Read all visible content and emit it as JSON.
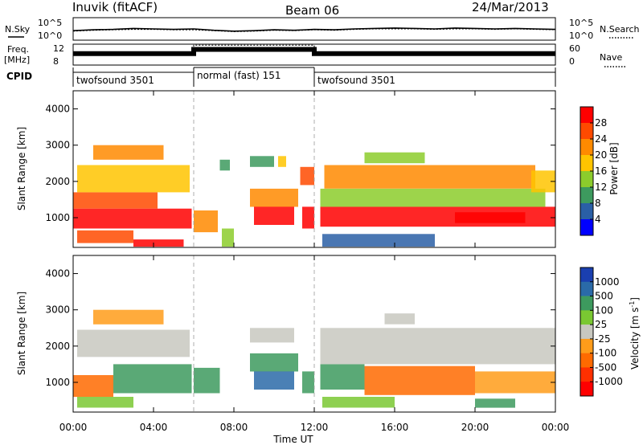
{
  "header": {
    "station": "Inuvik (fitACF)",
    "beam": "Beam 06",
    "date": "24/Mar/2013"
  },
  "chart_data": [
    {
      "type": "line",
      "id": "noise",
      "left_label": "N.Sky",
      "right_label": "N.Search",
      "yticks_left": [
        "10^5",
        "10^0"
      ],
      "yticks_right": [
        "10^5",
        "10^0"
      ],
      "x": [
        0,
        1,
        2,
        3,
        4,
        5,
        6,
        7,
        8,
        9,
        10,
        11,
        12,
        13,
        14,
        15,
        16,
        17,
        18,
        19,
        20,
        21,
        22,
        23,
        24
      ],
      "series": [
        {
          "name": "N.Sky",
          "values": [
            2.1,
            2.3,
            2.4,
            2.6,
            2.5,
            2.4,
            2.5,
            2.2,
            2.0,
            2.1,
            2.3,
            2.2,
            2.4,
            2.3,
            2.5,
            2.6,
            2.7,
            2.6,
            2.5,
            2.7,
            2.6,
            2.5,
            2.6,
            2.5,
            2.4
          ]
        },
        {
          "name": "N.Search",
          "values": [
            2.0,
            2.2,
            2.3,
            2.4,
            2.4,
            2.3,
            2.3,
            2.1,
            1.9,
            2.0,
            2.2,
            2.1,
            2.3,
            2.2,
            2.4,
            2.5,
            2.5,
            2.5,
            2.4,
            2.5,
            2.5,
            2.4,
            2.5,
            2.4,
            2.3
          ]
        }
      ]
    },
    {
      "type": "line",
      "id": "freq",
      "left_label_1": "Freq.",
      "left_label_2": "[MHz]",
      "right_label": "Nave",
      "yticks_left": [
        "12",
        "8"
      ],
      "yticks_right": [
        "60",
        "0"
      ],
      "x": [
        0,
        6,
        6,
        12,
        12,
        24
      ],
      "series": [
        {
          "name": "Freq.",
          "values": [
            10.2,
            10.2,
            11.0,
            11.0,
            10.2,
            10.2
          ]
        },
        {
          "name": "Nave",
          "values": [
            30,
            30,
            57,
            57,
            30,
            30
          ]
        }
      ]
    },
    {
      "type": "table",
      "id": "cpid",
      "label": "CPID",
      "segments": [
        {
          "start": 0,
          "end": 6,
          "text": "twofsound 3501"
        },
        {
          "start": 6,
          "end": 12,
          "text": "normal (fast) 151"
        },
        {
          "start": 12,
          "end": 24,
          "text": "twofsound 3501"
        }
      ]
    },
    {
      "type": "heatmap",
      "id": "power",
      "ylabel": "Slant Range [km]",
      "yticks": [
        1000,
        2000,
        3000,
        4000
      ],
      "ylim": [
        180,
        4500
      ],
      "xlim": [
        0,
        24
      ],
      "colorbar": {
        "label": "Power [dB]",
        "ticks": [
          "28",
          "24",
          "20",
          "16",
          "12",
          "8",
          "4"
        ],
        "colors": [
          "#ff0000",
          "#ff4a00",
          "#ff8a00",
          "#ffc400",
          "#8ccc2c",
          "#3d9a5e",
          "#2a5fa6",
          "#0000ff"
        ]
      },
      "regions": [
        {
          "x0": 0,
          "x1": 5.9,
          "y0": 700,
          "y1": 1250,
          "c": 0
        },
        {
          "x0": 0,
          "x1": 4.2,
          "y0": 1250,
          "y1": 1700,
          "c": 1
        },
        {
          "x0": 0.2,
          "x1": 5.8,
          "y0": 1700,
          "y1": 2450,
          "c": 3
        },
        {
          "x0": 1.0,
          "x1": 4.5,
          "y0": 2600,
          "y1": 3000,
          "c": 2
        },
        {
          "x0": 0.2,
          "x1": 3.0,
          "y0": 300,
          "y1": 650,
          "c": 1
        },
        {
          "x0": 3.0,
          "x1": 5.5,
          "y0": 200,
          "y1": 400,
          "c": 0
        },
        {
          "x0": 6.0,
          "x1": 7.2,
          "y0": 600,
          "y1": 1200,
          "c": 2
        },
        {
          "x0": 7.3,
          "x1": 7.8,
          "y0": 2300,
          "y1": 2600,
          "c": 5
        },
        {
          "x0": 7.4,
          "x1": 8.0,
          "y0": 200,
          "y1": 700,
          "c": 4
        },
        {
          "x0": 8.8,
          "x1": 10.0,
          "y0": 2400,
          "y1": 2700,
          "c": 5
        },
        {
          "x0": 8.8,
          "x1": 11.2,
          "y0": 1300,
          "y1": 1800,
          "c": 2
        },
        {
          "x0": 9.0,
          "x1": 11.0,
          "y0": 800,
          "y1": 1300,
          "c": 0
        },
        {
          "x0": 10.2,
          "x1": 10.6,
          "y0": 2400,
          "y1": 2700,
          "c": 3
        },
        {
          "x0": 11.3,
          "x1": 12.0,
          "y0": 1900,
          "y1": 2400,
          "c": 1
        },
        {
          "x0": 11.4,
          "x1": 12.0,
          "y0": 700,
          "y1": 1300,
          "c": 0
        },
        {
          "x0": 12.3,
          "x1": 24.0,
          "y0": 750,
          "y1": 1300,
          "c": 0
        },
        {
          "x0": 12.3,
          "x1": 23.5,
          "y0": 1300,
          "y1": 1800,
          "c": 4
        },
        {
          "x0": 12.5,
          "x1": 23.0,
          "y0": 1800,
          "y1": 2450,
          "c": 2
        },
        {
          "x0": 14.5,
          "x1": 17.5,
          "y0": 2500,
          "y1": 2800,
          "c": 4
        },
        {
          "x0": 12.4,
          "x1": 18.0,
          "y0": 200,
          "y1": 550,
          "c": 6
        },
        {
          "x0": 19.0,
          "x1": 22.5,
          "y0": 850,
          "y1": 1150,
          "c": 0
        },
        {
          "x0": 22.8,
          "x1": 24.0,
          "y0": 1700,
          "y1": 2300,
          "c": 3
        }
      ]
    },
    {
      "type": "heatmap",
      "id": "velocity",
      "ylabel": "Slant Range [km]",
      "yticks": [
        1000,
        2000,
        3000,
        4000
      ],
      "ylim": [
        180,
        4500
      ],
      "xlim": [
        0,
        24
      ],
      "xlabel": "Time UT",
      "xticks": [
        "00:00",
        "04:00",
        "08:00",
        "12:00",
        "16:00",
        "20:00",
        "00:00"
      ],
      "colorbar": {
        "label_main": "Velocity [m s",
        "label_sup": "-1",
        "label_end": "]",
        "ticks": [
          "1000",
          "500",
          "100",
          "25",
          "-25",
          "-100",
          "-500",
          "-1000"
        ],
        "colors": [
          "#1a3fb0",
          "#2a6aa8",
          "#3d9a5e",
          "#7ac832",
          "#c8c8c0",
          "#ff9c1a",
          "#ff6a00",
          "#ff3000",
          "#ff0000"
        ]
      },
      "regions": [
        {
          "x0": 0,
          "x1": 2.0,
          "y0": 600,
          "y1": 1200,
          "c": 6
        },
        {
          "x0": 2.0,
          "x1": 5.9,
          "y0": 700,
          "y1": 1500,
          "c": 2
        },
        {
          "x0": 0.2,
          "x1": 5.8,
          "y0": 1700,
          "y1": 2450,
          "c": 4
        },
        {
          "x0": 1.0,
          "x1": 4.5,
          "y0": 2600,
          "y1": 3000,
          "c": 5
        },
        {
          "x0": 0.2,
          "x1": 3.0,
          "y0": 300,
          "y1": 600,
          "c": 3
        },
        {
          "x0": 6.0,
          "x1": 7.3,
          "y0": 700,
          "y1": 1400,
          "c": 2
        },
        {
          "x0": 8.8,
          "x1": 11.2,
          "y0": 1300,
          "y1": 1800,
          "c": 2
        },
        {
          "x0": 8.8,
          "x1": 11.0,
          "y0": 2100,
          "y1": 2500,
          "c": 4
        },
        {
          "x0": 9.0,
          "x1": 11.0,
          "y0": 800,
          "y1": 1300,
          "c": 1
        },
        {
          "x0": 11.4,
          "x1": 12.0,
          "y0": 700,
          "y1": 1300,
          "c": 2
        },
        {
          "x0": 12.3,
          "x1": 14.5,
          "y0": 800,
          "y1": 1500,
          "c": 2
        },
        {
          "x0": 14.5,
          "x1": 20.0,
          "y0": 650,
          "y1": 1450,
          "c": 6
        },
        {
          "x0": 20.0,
          "x1": 24.0,
          "y0": 700,
          "y1": 1300,
          "c": 5
        },
        {
          "x0": 12.3,
          "x1": 24.0,
          "y0": 1500,
          "y1": 2500,
          "c": 4
        },
        {
          "x0": 15.5,
          "x1": 17.0,
          "y0": 2600,
          "y1": 2900,
          "c": 4
        },
        {
          "x0": 12.4,
          "x1": 16.0,
          "y0": 300,
          "y1": 600,
          "c": 3
        },
        {
          "x0": 20.0,
          "x1": 22.0,
          "y0": 300,
          "y1": 550,
          "c": 2
        }
      ]
    }
  ]
}
